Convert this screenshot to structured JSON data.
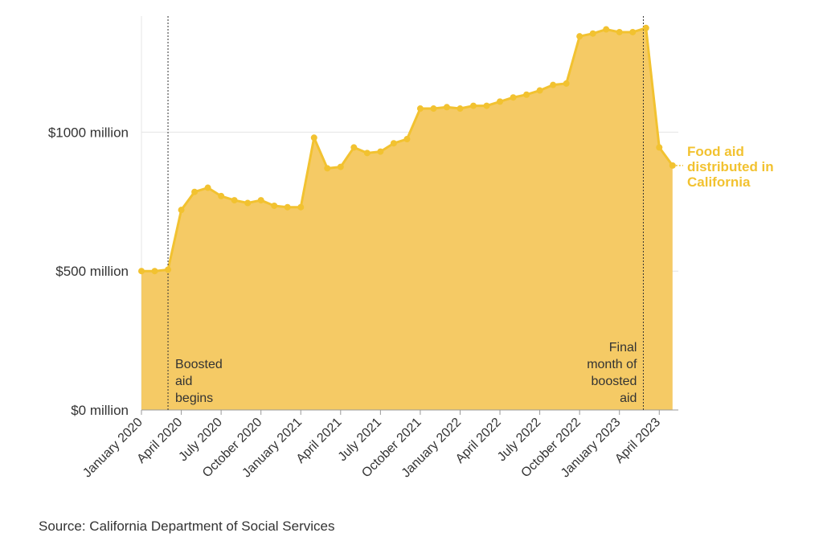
{
  "chart_data": {
    "type": "area",
    "title": "",
    "xlabel": "",
    "ylabel": "",
    "ylim": [
      0,
      1420
    ],
    "y_ticks": [
      {
        "value": 0,
        "label": "$0 million"
      },
      {
        "value": 500,
        "label": "$500 million"
      },
      {
        "value": 1000,
        "label": "$1000 million"
      }
    ],
    "x_ticks": [
      {
        "index": 0,
        "label": "January 2020"
      },
      {
        "index": 3,
        "label": "April 2020"
      },
      {
        "index": 6,
        "label": "July 2020"
      },
      {
        "index": 9,
        "label": "October 2020"
      },
      {
        "index": 12,
        "label": "January 2021"
      },
      {
        "index": 15,
        "label": "April 2021"
      },
      {
        "index": 18,
        "label": "July 2021"
      },
      {
        "index": 21,
        "label": "October 2021"
      },
      {
        "index": 24,
        "label": "January 2022"
      },
      {
        "index": 27,
        "label": "April 2022"
      },
      {
        "index": 30,
        "label": "July 2022"
      },
      {
        "index": 33,
        "label": "October 2022"
      },
      {
        "index": 36,
        "label": "January 2023"
      },
      {
        "index": 39,
        "label": "April 2023"
      }
    ],
    "series": [
      {
        "name": "Food aid distributed in California",
        "label_lines": [
          "Food aid",
          "distributed in",
          "California"
        ],
        "color": "#f2c230",
        "fill": "#f5ca65",
        "unit": "million USD",
        "values": [
          500,
          500,
          505,
          720,
          785,
          800,
          770,
          755,
          745,
          755,
          735,
          730,
          730,
          980,
          870,
          875,
          945,
          925,
          930,
          960,
          975,
          1085,
          1085,
          1090,
          1085,
          1095,
          1095,
          1110,
          1125,
          1135,
          1150,
          1170,
          1175,
          1345,
          1355,
          1370,
          1360,
          1360,
          1375,
          945,
          880
        ]
      }
    ],
    "annotations": [
      {
        "x_index": 2,
        "lines": [
          "Boosted",
          "aid",
          "begins"
        ],
        "align": "right"
      },
      {
        "x_index": 37.8,
        "lines": [
          "Final",
          "month of",
          "boosted",
          "aid"
        ],
        "align": "left"
      }
    ]
  },
  "source": "Source: California Department of Social Services"
}
